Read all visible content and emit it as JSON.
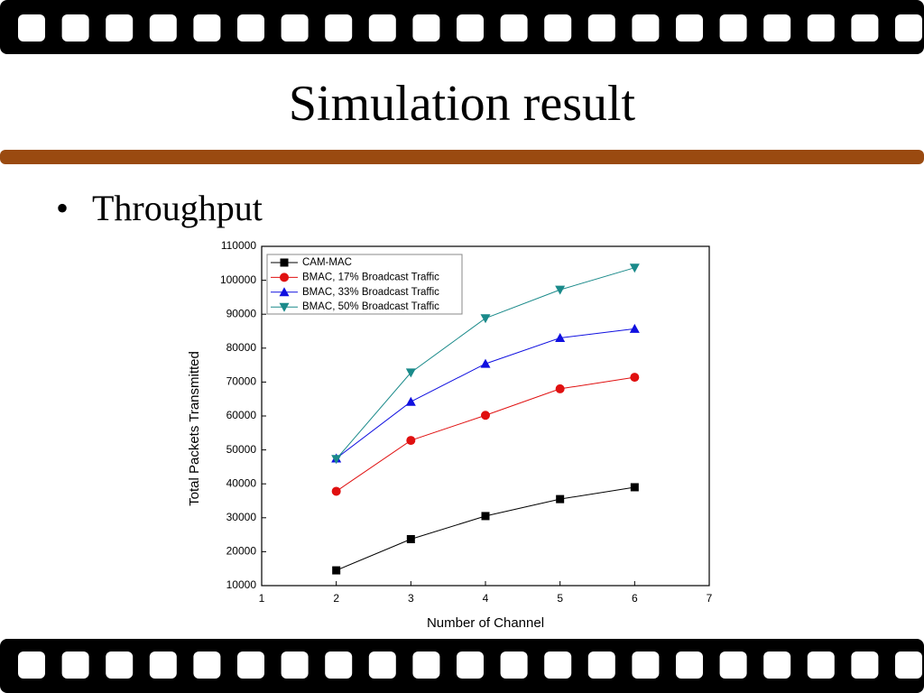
{
  "slide": {
    "title": "Simulation result",
    "bullet": "Throughput"
  },
  "chart_data": {
    "type": "line",
    "x_label": "Number of Channel",
    "y_label": "Total Packets Transmitted",
    "x": [
      2,
      3,
      4,
      5,
      6
    ],
    "series": [
      {
        "name": "CAM-MAC",
        "color": "#000000",
        "marker": "square",
        "values": [
          14500,
          23700,
          30500,
          35500,
          39000
        ]
      },
      {
        "name": "BMAC, 17% Broadcast Traffic",
        "color": "#e01010",
        "marker": "circle",
        "values": [
          37800,
          52800,
          60200,
          68000,
          71400
        ]
      },
      {
        "name": "BMAC, 33% Broadcast Traffic",
        "color": "#1010e0",
        "marker": "triangle-up",
        "values": [
          47500,
          64200,
          75400,
          83000,
          85700
        ]
      },
      {
        "name": "BMAC, 50% Broadcast Traffic",
        "color": "#1a8a8a",
        "marker": "triangle-down",
        "values": [
          47300,
          72800,
          88800,
          97200,
          103700
        ]
      }
    ],
    "xlim": [
      1,
      7
    ],
    "xticks": [
      1,
      2,
      3,
      4,
      5,
      6,
      7
    ],
    "ylim": [
      10000,
      110000
    ],
    "yticks": [
      10000,
      20000,
      30000,
      40000,
      50000,
      60000,
      70000,
      80000,
      90000,
      100000,
      110000
    ],
    "grid": false,
    "legend": "top-left"
  }
}
